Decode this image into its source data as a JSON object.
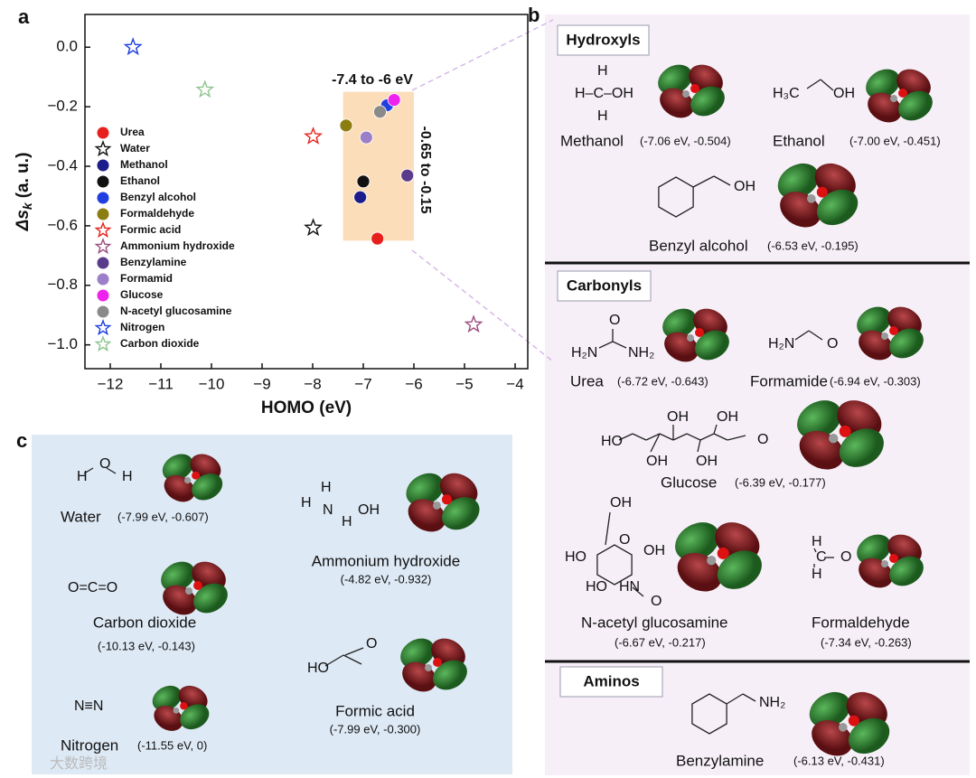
{
  "panel_labels": [
    "a",
    "b",
    "c"
  ],
  "chart_data": {
    "type": "scatter",
    "xlabel": "HOMO (eV)",
    "ylabel": {
      "main": "Δs",
      "sub": "k",
      "unit": "(a. u.)"
    },
    "xlim": [
      -12.5,
      -3.75
    ],
    "xticks": [
      {
        "value": -12,
        "label": "−12"
      },
      {
        "value": -11,
        "label": "−11"
      },
      {
        "value": -10,
        "label": "−10"
      },
      {
        "value": -9,
        "label": "−9"
      },
      {
        "value": -8,
        "label": "−8"
      },
      {
        "value": -7,
        "label": "−7"
      },
      {
        "value": -6,
        "label": "−6"
      },
      {
        "value": -5,
        "label": "−5"
      },
      {
        "value": -4,
        "label": "−4"
      }
    ],
    "ylim": [
      -1.08,
      0.11
    ],
    "yticks": [
      {
        "value": 0,
        "label": "0.0"
      },
      {
        "value": -0.2,
        "label": "−0.2"
      },
      {
        "value": -0.4,
        "label": "−0.4"
      },
      {
        "value": -0.6,
        "label": "−0.6"
      },
      {
        "value": -0.8,
        "label": "−0.8"
      },
      {
        "value": -1.0,
        "label": "−1.0"
      }
    ],
    "series": [
      {
        "name": "Urea",
        "color": "#e8201c",
        "marker": "circle",
        "x": [
          -6.72
        ],
        "values": [
          -0.643
        ]
      },
      {
        "name": "Water",
        "color": "#111111",
        "marker": "star",
        "x": [
          -7.99
        ],
        "values": [
          -0.607
        ]
      },
      {
        "name": "Methanol",
        "color": "#1c1c8a",
        "marker": "circle",
        "x": [
          -7.06
        ],
        "values": [
          -0.504
        ]
      },
      {
        "name": "Ethanol",
        "color": "#111111",
        "marker": "circle",
        "x": [
          -7.0
        ],
        "values": [
          -0.451
        ]
      },
      {
        "name": "Benzyl alcohol",
        "color": "#1f3fe0",
        "marker": "circle",
        "x": [
          -6.53
        ],
        "values": [
          -0.195
        ]
      },
      {
        "name": "Formaldehyde",
        "color": "#8b7d10",
        "marker": "circle",
        "x": [
          -7.34
        ],
        "values": [
          -0.263
        ]
      },
      {
        "name": "Formic acid",
        "color": "#e8201c",
        "marker": "star",
        "x": [
          -7.99
        ],
        "values": [
          -0.3
        ]
      },
      {
        "name": "Ammonium hydroxide",
        "color": "#9b4f7f",
        "marker": "star",
        "x": [
          -4.82
        ],
        "values": [
          -0.932
        ]
      },
      {
        "name": "Benzylamine",
        "color": "#5a3a8a",
        "marker": "circle",
        "x": [
          -6.13
        ],
        "values": [
          -0.431
        ]
      },
      {
        "name": "Formamid",
        "color": "#9b7fc8",
        "marker": "circle",
        "x": [
          -6.94
        ],
        "values": [
          -0.303
        ]
      },
      {
        "name": "Glucose",
        "color": "#ee22ee",
        "marker": "circle",
        "x": [
          -6.39
        ],
        "values": [
          -0.177
        ]
      },
      {
        "name": "N-acetyl glucosamine",
        "color": "#8a8a8a",
        "marker": "circle",
        "x": [
          -6.67
        ],
        "values": [
          -0.217
        ]
      },
      {
        "name": "Nitrogen",
        "color": "#1f3fe0",
        "marker": "star",
        "x": [
          -11.55
        ],
        "values": [
          0
        ]
      },
      {
        "name": "Carbon dioxide",
        "color": "#8fc48f",
        "marker": "star",
        "x": [
          -10.13
        ],
        "values": [
          -0.143
        ]
      }
    ],
    "highlight": {
      "xlim": [
        -7.4,
        -6
      ],
      "ylim": [
        -0.65,
        -0.15
      ],
      "color": "#fbd7ae"
    },
    "annotations": [
      "-7.4 to -6 eV",
      "-0.65 to -0.15"
    ]
  },
  "panel_b": {
    "sections": [
      {
        "title": "Hydroxyls",
        "molecules": [
          {
            "name": "Methanol",
            "value": "(-7.06 eV, -0.504)",
            "atoms": [
              "H",
              "H–C–OH",
              "H"
            ]
          },
          {
            "name": "Ethanol",
            "value": "(-7.00 eV, -0.451)",
            "atoms": [
              "H₃C",
              "OH"
            ]
          },
          {
            "name": "Benzyl alcohol",
            "value": "(-6.53 eV, -0.195)",
            "atoms": [
              "OH"
            ]
          }
        ]
      },
      {
        "title": "Carbonyls",
        "molecules": [
          {
            "name": "Urea",
            "value": "(-6.72 eV, -0.643)",
            "atoms": [
              "O",
              "H₂N",
              "NH₂"
            ]
          },
          {
            "name": "Formamide",
            "value": "(-6.94 eV, -0.303)",
            "atoms": [
              "H₂N",
              "O"
            ]
          },
          {
            "name": "Glucose",
            "value": "(-6.39 eV, -0.177)",
            "atoms": [
              "OH",
              "OH",
              "HO",
              "OH",
              "OH",
              "O"
            ]
          },
          {
            "name": "N-acetyl glucosamine",
            "value": "(-6.67 eV, -0.217)",
            "atoms": [
              "OH",
              "O",
              "OH",
              "HO",
              "HO",
              "HN",
              "O"
            ]
          },
          {
            "name": "Formaldehyde",
            "value": "(-7.34 eV, -0.263)",
            "atoms": [
              "H",
              "C",
              "O",
              "H"
            ]
          }
        ]
      },
      {
        "title": "Aminos",
        "molecules": [
          {
            "name": "Benzylamine",
            "value": "(-6.13 eV, -0.431)",
            "atoms": [
              "NH₂"
            ]
          }
        ]
      }
    ]
  },
  "panel_c": {
    "molecules": [
      {
        "name": "Water",
        "value": "(-7.99 eV, -0.607)",
        "atoms": [
          "H",
          "O",
          "H"
        ]
      },
      {
        "name": "Ammonium hydroxide",
        "value": "(-4.82 eV, -0.932)",
        "atoms": [
          "H",
          "H",
          "N",
          "H",
          "OH"
        ]
      },
      {
        "name": "Carbon dioxide",
        "value": "(-10.13 eV, -0.143)",
        "atoms": [
          "O=C=O"
        ]
      },
      {
        "name": "Formic acid",
        "value": "(-7.99 eV, -0.300)",
        "atoms": [
          "HO",
          "O"
        ]
      },
      {
        "name": "Nitrogen",
        "value": "(-11.55 eV, 0)",
        "atoms": [
          "N≡N"
        ]
      }
    ]
  },
  "watermark": "大数跨境"
}
